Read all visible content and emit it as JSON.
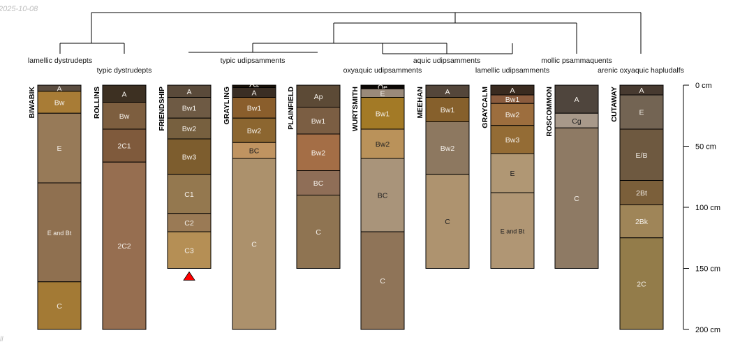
{
  "corner": {
    "date": "2025-10-08",
    "footer": "ll"
  },
  "chart_data": {
    "type": "soil-profile-sketch",
    "depth_units": "cm",
    "depth_range": [
      0,
      200
    ],
    "depth_axis_ticks": [
      {
        "depth": 0,
        "label": "0 cm"
      },
      {
        "depth": 50,
        "label": "50 cm"
      },
      {
        "depth": 100,
        "label": "100 cm"
      },
      {
        "depth": 150,
        "label": "150 cm"
      },
      {
        "depth": 200,
        "label": "200 cm"
      }
    ],
    "taxa_labels": [
      "lamellic dystrudepts",
      "typic dystrudepts",
      "typic udipsamments",
      "oxyaquic udipsamments",
      "aquic udipsamments",
      "lamellic udipsamments",
      "mollic psammaquents",
      "arenic oxyaquic hapludalfs"
    ],
    "profiles": [
      {
        "name": "BIWABIK",
        "bottom": 200,
        "horizons": [
          {
            "name": "A",
            "top": 0,
            "bottom": 5,
            "color": "#5b4d40"
          },
          {
            "name": "Bw",
            "top": 5,
            "bottom": 23,
            "color": "#a87c36"
          },
          {
            "name": "E",
            "top": 23,
            "bottom": 80,
            "color": "#977a58"
          },
          {
            "name": "E and Bt",
            "top": 80,
            "bottom": 161,
            "color": "#8f7050"
          },
          {
            "name": "C",
            "top": 161,
            "bottom": 200,
            "color": "#a37a35"
          }
        ]
      },
      {
        "name": "ROLLINS",
        "bottom": 200,
        "horizons": [
          {
            "name": "A",
            "top": 0,
            "bottom": 14,
            "color": "#3d3022"
          },
          {
            "name": "Bw",
            "top": 14,
            "bottom": 36,
            "color": "#7d5e3f"
          },
          {
            "name": "2C1",
            "top": 36,
            "bottom": 63,
            "color": "#7f5a3c"
          },
          {
            "name": "2C2",
            "top": 63,
            "bottom": 200,
            "color": "#966e50"
          }
        ]
      },
      {
        "name": "FRIENDSHIP",
        "bottom": 150,
        "note": "deeper",
        "horizons": [
          {
            "name": "A",
            "top": 0,
            "bottom": 10,
            "color": "#5a4a3a"
          },
          {
            "name": "Bw1",
            "top": 10,
            "bottom": 27,
            "color": "#6e5a44"
          },
          {
            "name": "Bw2",
            "top": 27,
            "bottom": 44,
            "color": "#77603f"
          },
          {
            "name": "Bw3",
            "top": 44,
            "bottom": 73,
            "color": "#7d5d2e"
          },
          {
            "name": "C1",
            "top": 73,
            "bottom": 105,
            "color": "#94784f"
          },
          {
            "name": "C2",
            "top": 105,
            "bottom": 120,
            "color": "#9a7a55"
          },
          {
            "name": "C3",
            "top": 120,
            "bottom": 150,
            "color": "#b58f55"
          }
        ]
      },
      {
        "name": "GRAYLING",
        "bottom": 200,
        "horizons": [
          {
            "name": "Oe",
            "top": 0,
            "bottom": 2,
            "color": "#1a1208"
          },
          {
            "name": "A",
            "top": 2,
            "bottom": 10,
            "color": "#3a2e24"
          },
          {
            "name": "Bw1",
            "top": 10,
            "bottom": 27,
            "color": "#8a5e2c"
          },
          {
            "name": "Bw2",
            "top": 27,
            "bottom": 47,
            "color": "#8c6630"
          },
          {
            "name": "BC",
            "top": 47,
            "bottom": 60,
            "color": "#c09461"
          },
          {
            "name": "C",
            "top": 60,
            "bottom": 200,
            "color": "#ac916c"
          }
        ]
      },
      {
        "name": "PLAINFIELD",
        "bottom": 150,
        "horizons": [
          {
            "name": "Ap",
            "top": 0,
            "bottom": 18,
            "color": "#5c4a36"
          },
          {
            "name": "Bw1",
            "top": 18,
            "bottom": 40,
            "color": "#7b5e43"
          },
          {
            "name": "Bw2",
            "top": 40,
            "bottom": 70,
            "color": "#a46e46"
          },
          {
            "name": "BC",
            "top": 70,
            "bottom": 90,
            "color": "#8f6e57"
          },
          {
            "name": "C",
            "top": 90,
            "bottom": 150,
            "color": "#8f7452"
          }
        ]
      },
      {
        "name": "WURTSMITH",
        "bottom": 200,
        "horizons": [
          {
            "name": "Oe",
            "top": 0,
            "bottom": 3,
            "color": "#0c0805"
          },
          {
            "name": "E",
            "top": 3,
            "bottom": 10,
            "color": "#9a8a7a"
          },
          {
            "name": "Bw1",
            "top": 10,
            "bottom": 36,
            "color": "#a37a26"
          },
          {
            "name": "Bw2",
            "top": 36,
            "bottom": 60,
            "color": "#ba925a"
          },
          {
            "name": "BC",
            "top": 60,
            "bottom": 120,
            "color": "#a9947a"
          },
          {
            "name": "C",
            "top": 120,
            "bottom": 200,
            "color": "#8f7458"
          }
        ]
      },
      {
        "name": "MEEHAN",
        "bottom": 150,
        "horizons": [
          {
            "name": "A",
            "top": 0,
            "bottom": 10,
            "color": "#54463a"
          },
          {
            "name": "Bw1",
            "top": 10,
            "bottom": 30,
            "color": "#86602c"
          },
          {
            "name": "Bw2",
            "top": 30,
            "bottom": 73,
            "color": "#8d7860"
          },
          {
            "name": "C",
            "top": 73,
            "bottom": 150,
            "color": "#ae936f"
          }
        ]
      },
      {
        "name": "GRAYCALM",
        "bottom": 150,
        "horizons": [
          {
            "name": "A",
            "top": 0,
            "bottom": 8,
            "color": "#3a2b20"
          },
          {
            "name": "Bw1",
            "top": 8,
            "bottom": 15,
            "color": "#8b5c3e"
          },
          {
            "name": "Bw2",
            "top": 15,
            "bottom": 33,
            "color": "#9d6e3e"
          },
          {
            "name": "Bw3",
            "top": 33,
            "bottom": 56,
            "color": "#946c35"
          },
          {
            "name": "E",
            "top": 56,
            "bottom": 88,
            "color": "#b09774"
          },
          {
            "name": "E and Bt",
            "top": 88,
            "bottom": 150,
            "color": "#b09674"
          }
        ]
      },
      {
        "name": "ROSCOMMON",
        "bottom": 150,
        "horizons": [
          {
            "name": "A",
            "top": 0,
            "bottom": 23,
            "color": "#4f453d"
          },
          {
            "name": "Cg",
            "top": 23,
            "bottom": 35,
            "color": "#a8998a"
          },
          {
            "name": "C",
            "top": 35,
            "bottom": 150,
            "color": "#8e7a64"
          }
        ]
      },
      {
        "name": "CUTAWAY",
        "bottom": 200,
        "horizons": [
          {
            "name": "A",
            "top": 0,
            "bottom": 8,
            "color": "#473a30"
          },
          {
            "name": "E",
            "top": 8,
            "bottom": 36,
            "color": "#736453"
          },
          {
            "name": "E/B",
            "top": 36,
            "bottom": 78,
            "color": "#6e5940"
          },
          {
            "name": "2Bt",
            "top": 78,
            "bottom": 98,
            "color": "#7b5f3a"
          },
          {
            "name": "2Bk",
            "top": 98,
            "bottom": 125,
            "color": "#9f8558"
          },
          {
            "name": "2C",
            "top": 125,
            "bottom": 200,
            "color": "#937c4a"
          }
        ]
      }
    ]
  }
}
